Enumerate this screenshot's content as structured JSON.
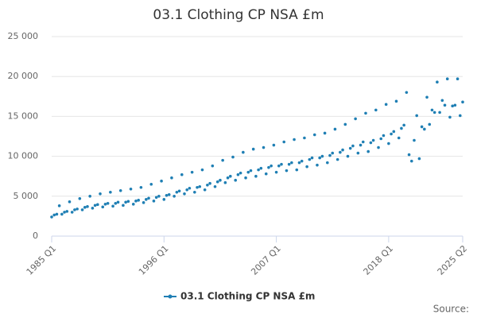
{
  "chart_data": {
    "type": "line",
    "title": "03.1 Clothing CP NSA £m",
    "categories": [
      "1985 Q1",
      null,
      null,
      null,
      null,
      null,
      null,
      null,
      null,
      null,
      null,
      null,
      null,
      null,
      null,
      null,
      null,
      null,
      null,
      null,
      null,
      null,
      null,
      null,
      null,
      null,
      null,
      null,
      null,
      null,
      null,
      null,
      null,
      null,
      null,
      null,
      null,
      null,
      null,
      null,
      null,
      null,
      null,
      null,
      "1996 Q1",
      null,
      null,
      null,
      null,
      null,
      null,
      null,
      null,
      null,
      null,
      null,
      null,
      null,
      null,
      null,
      null,
      null,
      null,
      null,
      null,
      null,
      null,
      null,
      null,
      null,
      null,
      null,
      null,
      null,
      null,
      null,
      null,
      null,
      null,
      null,
      null,
      null,
      null,
      null,
      null,
      null,
      null,
      null,
      "2007 Q1",
      null,
      null,
      null,
      null,
      null,
      null,
      null,
      null,
      null,
      null,
      null,
      null,
      null,
      null,
      null,
      null,
      null,
      null,
      null,
      null,
      null,
      null,
      null,
      null,
      null,
      null,
      null,
      null,
      null,
      null,
      null,
      null,
      null,
      null,
      null,
      null,
      null,
      null,
      null,
      null,
      null,
      null,
      null,
      "2018 Q1",
      null,
      null,
      null,
      null,
      null,
      null,
      null,
      null,
      null,
      null,
      null,
      null,
      null,
      null,
      null,
      null,
      null,
      null,
      null,
      null,
      null,
      null,
      null,
      null,
      null,
      null,
      null,
      null,
      "2025 Q2"
    ],
    "series": [
      {
        "name": "03.1 Clothing CP NSA £m",
        "color": "#1f7fb4",
        "values": [
          2400,
          2650,
          2750,
          3800,
          2750,
          3000,
          3100,
          4300,
          3000,
          3300,
          3400,
          4700,
          3300,
          3600,
          3700,
          5000,
          3500,
          3850,
          3950,
          5300,
          3650,
          4000,
          4100,
          5500,
          3750,
          4100,
          4250,
          5700,
          3850,
          4250,
          4350,
          5900,
          4000,
          4400,
          4500,
          6100,
          4200,
          4600,
          4750,
          6500,
          4400,
          4850,
          5000,
          6900,
          4600,
          5100,
          5200,
          7300,
          5000,
          5500,
          5650,
          7700,
          5300,
          5800,
          6000,
          8000,
          5500,
          6100,
          6200,
          8300,
          5800,
          6400,
          6600,
          8800,
          6200,
          6800,
          7000,
          9500,
          6700,
          7300,
          7500,
          9900,
          7000,
          7700,
          7900,
          10500,
          7300,
          8000,
          8200,
          10900,
          7500,
          8300,
          8500,
          11100,
          7800,
          8600,
          8800,
          11400,
          8000,
          8800,
          9000,
          11800,
          8200,
          9000,
          9200,
          12100,
          8300,
          9200,
          9400,
          12300,
          8700,
          9600,
          9800,
          12700,
          8900,
          9800,
          10000,
          12900,
          9200,
          10100,
          10400,
          13400,
          9600,
          10500,
          10800,
          14000,
          10000,
          11000,
          11300,
          14700,
          10400,
          11400,
          11800,
          15400,
          10600,
          11700,
          12000,
          15800,
          11100,
          12200,
          12600,
          16500,
          11600,
          12800,
          13100,
          16900,
          12300,
          13500,
          13900,
          18000,
          10200,
          9400,
          12000,
          15100,
          9700,
          13700,
          13400,
          17400,
          14000,
          15800,
          15500,
          19300,
          15500,
          17000,
          16400,
          19700,
          14900,
          16300,
          16400,
          19700,
          15100,
          16800
        ]
      }
    ],
    "ylim": [
      0,
      25000
    ],
    "yticks": [
      0,
      {
        "value": 5000,
        "label": "5 000"
      },
      {
        "value": 10000,
        "label": "10 000"
      },
      {
        "value": 15000,
        "label": "15 000"
      },
      {
        "value": 20000,
        "label": "20 000"
      },
      {
        "value": 25000,
        "label": "25 000"
      }
    ],
    "grid": true,
    "legend": "bottom",
    "source": "Source:"
  }
}
